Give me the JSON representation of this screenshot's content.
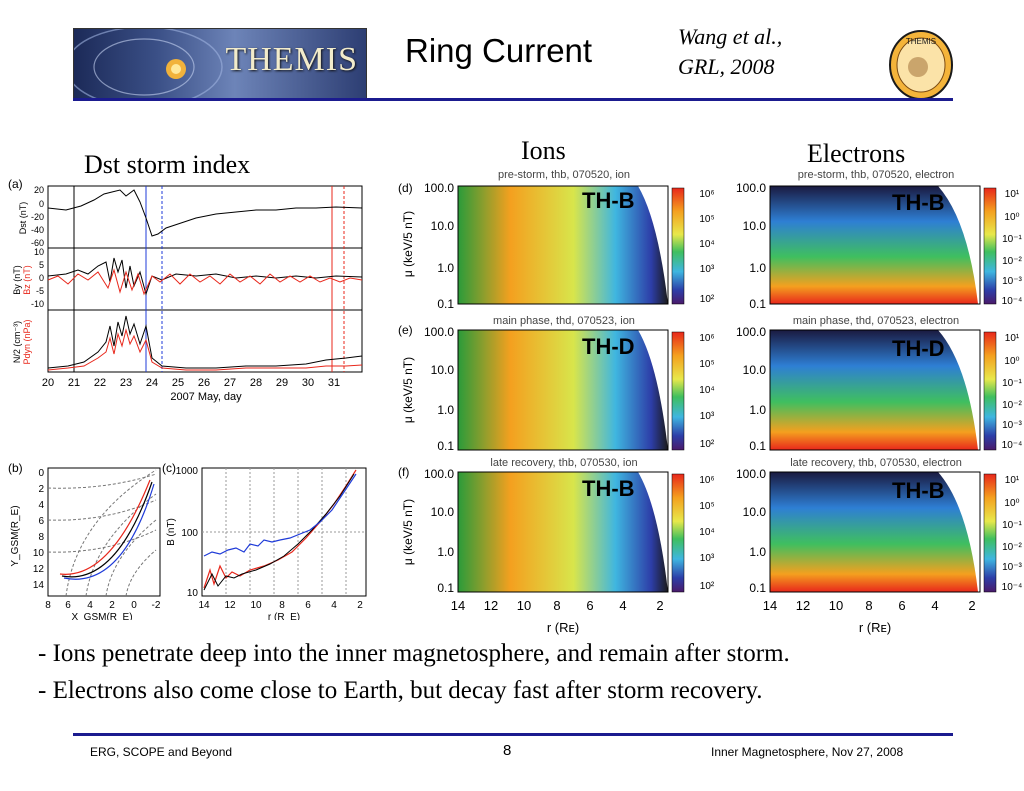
{
  "header": {
    "logo_text": "THEMIS",
    "title": "Ring Current",
    "citation_line1": "Wang et al.,",
    "citation_line2": "GRL, 2008",
    "badge_text": "THEMIS"
  },
  "labels": {
    "dst": "Dst storm index",
    "ions": "Ions",
    "electrons": "Electrons"
  },
  "panel_a": {
    "tag": "(a)",
    "dst_label": "Dst (nT)",
    "dst_ticks": [
      "20",
      "0",
      "-20",
      "-40",
      "-60"
    ],
    "b_label_black": "By (nT)",
    "b_label_red": "Bz (nT)",
    "b_ticks": [
      "10",
      "5",
      "0",
      "-5",
      "-10"
    ],
    "n_label_black": "N/2 (cm⁻³)",
    "n_label_red": "Pdyn (nPa)",
    "x_ticks": [
      "20",
      "21",
      "22",
      "23",
      "24",
      "25",
      "26",
      "27",
      "28",
      "29",
      "30",
      "31"
    ],
    "xlabel": "2007 May, day"
  },
  "panel_b": {
    "tag": "(b)",
    "ylabel": "Y_GSM(R_E)",
    "y_ticks": [
      "0",
      "2",
      "4",
      "6",
      "8",
      "10",
      "12",
      "14"
    ],
    "x_ticks": [
      "8",
      "6",
      "4",
      "2",
      "0",
      "-2"
    ],
    "xlabel": "X_GSM(R_E)"
  },
  "panel_c": {
    "tag": "(c)",
    "ylabel": "B (nT)",
    "y_ticks": [
      "1000",
      "100",
      "10"
    ],
    "x_ticks": [
      "14",
      "12",
      "10",
      "8",
      "6",
      "4",
      "2"
    ],
    "xlabel": "r (R_E)"
  },
  "spectrograms": {
    "rows": [
      {
        "tag": "(d)",
        "ion_title": "pre-storm, thb, 070520, ion",
        "electron_title": "pre-storm, thb, 070520, electron",
        "ion_probe": "TH-B",
        "electron_probe": "TH-B"
      },
      {
        "tag": "(e)",
        "ion_title": "main phase, thd, 070523, ion",
        "electron_title": "main phase, thd, 070523, electron",
        "ion_probe": "TH-D",
        "electron_probe": "TH-D"
      },
      {
        "tag": "(f)",
        "ion_title": "late recovery, thb, 070530, ion",
        "electron_title": "late recovery, thb, 070530, electron",
        "ion_probe": "TH-B",
        "electron_probe": "TH-B"
      }
    ],
    "ylabel": "μ (keV/5 nT)",
    "y_ticks": [
      "100.0",
      "10.0",
      "1.0",
      "0.1"
    ],
    "x_ticks": [
      "14",
      "12",
      "10",
      "8",
      "6",
      "4",
      "2"
    ],
    "xlabel": "r (Rᴇ)",
    "ion_scale": [
      "10⁶",
      "10⁵",
      "10⁴",
      "10³",
      "10²"
    ],
    "electron_scale": [
      "10¹",
      "10⁰",
      "10⁻¹",
      "10⁻²",
      "10⁻³",
      "10⁻⁴"
    ]
  },
  "bullets": [
    "- Ions penetrate deep into the inner magnetosphere, and remain after storm.",
    "- Electrons also come close to Earth, but decay fast after storm recovery."
  ],
  "footer": {
    "left": "ERG, SCOPE and Beyond",
    "page": "8",
    "right": "Inner Magnetosphere, Nov 27, 2008"
  },
  "colors": {
    "rule": "#1b1b8f",
    "series_black": "#000000",
    "series_red": "#e8271b",
    "series_blue": "#1f3bd8"
  }
}
